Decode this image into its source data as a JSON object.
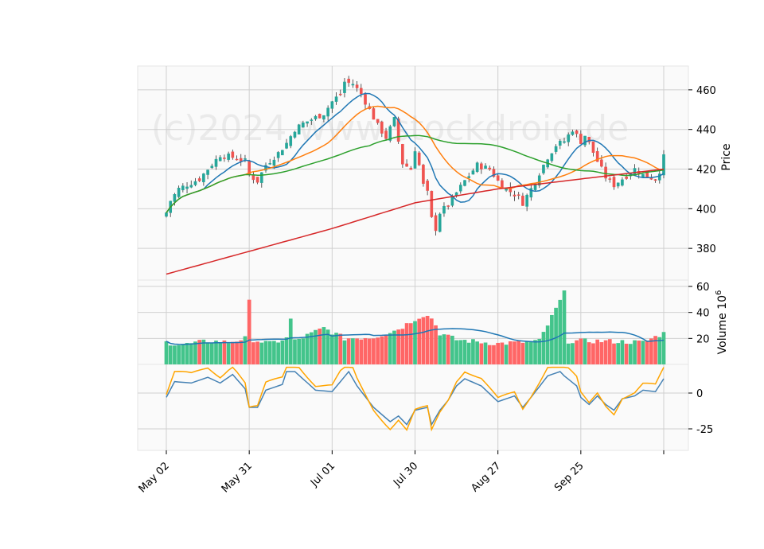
{
  "watermark": "(c)2024 www.stockdroid.de",
  "chart_data": {
    "type": "candlestick",
    "grid": true,
    "panels": {
      "price": {
        "ylabel": "Price",
        "yticks": [
          380,
          400,
          420,
          440,
          460
        ],
        "ylim": [
          364,
          472
        ]
      },
      "volume": {
        "ylabel": "Volume  10^6",
        "yticks": [
          20,
          40,
          60
        ],
        "ylim": [
          0,
          60
        ]
      },
      "indicator": {
        "ylabel": "",
        "yticks": [
          -25,
          0
        ],
        "ylim": [
          -40,
          20
        ]
      }
    },
    "x_tick_labels": [
      {
        "i": 0,
        "label": "May 02"
      },
      {
        "i": 20,
        "label": "May 31"
      },
      {
        "i": 40,
        "label": "Jul 01"
      },
      {
        "i": 60,
        "label": "Jul 30"
      },
      {
        "i": 80,
        "label": "Aug 27"
      },
      {
        "i": 100,
        "label": "Sep 25"
      },
      {
        "i": 120,
        "label": ""
      }
    ],
    "price_keypoints": [
      [
        0,
        398
      ],
      [
        1,
        404
      ],
      [
        3,
        410
      ],
      [
        5,
        412
      ],
      [
        8,
        415
      ],
      [
        10,
        420
      ],
      [
        13,
        427
      ],
      [
        16,
        426
      ],
      [
        19,
        424
      ],
      [
        20,
        417
      ],
      [
        22,
        414
      ],
      [
        24,
        422
      ],
      [
        27,
        428
      ],
      [
        29,
        433
      ],
      [
        31,
        440
      ],
      [
        33,
        443
      ],
      [
        36,
        446
      ],
      [
        38,
        448
      ],
      [
        40,
        454
      ],
      [
        42,
        458
      ],
      [
        43,
        464
      ],
      [
        45,
        463
      ],
      [
        47,
        458
      ],
      [
        49,
        450
      ],
      [
        51,
        442
      ],
      [
        53,
        436
      ],
      [
        55,
        445
      ],
      [
        57,
        423
      ],
      [
        59,
        420
      ],
      [
        60,
        430
      ],
      [
        61,
        422
      ],
      [
        62,
        412
      ],
      [
        63,
        408
      ],
      [
        64,
        395
      ],
      [
        65,
        390
      ],
      [
        66,
        398
      ],
      [
        68,
        402
      ],
      [
        70,
        408
      ],
      [
        72,
        414
      ],
      [
        75,
        422
      ],
      [
        78,
        420
      ],
      [
        80,
        414
      ],
      [
        82,
        410
      ],
      [
        85,
        406
      ],
      [
        86,
        403
      ],
      [
        88,
        410
      ],
      [
        90,
        418
      ],
      [
        92,
        426
      ],
      [
        94,
        432
      ],
      [
        96,
        434
      ],
      [
        98,
        440
      ],
      [
        100,
        434
      ],
      [
        101,
        437
      ],
      [
        102,
        433
      ],
      [
        104,
        424
      ],
      [
        106,
        416
      ],
      [
        108,
        412
      ],
      [
        110,
        415
      ],
      [
        113,
        420
      ],
      [
        115,
        417
      ],
      [
        118,
        415
      ],
      [
        119,
        419
      ],
      [
        120,
        426
      ]
    ],
    "volume_keypoints": [
      [
        0,
        17
      ],
      [
        4,
        15
      ],
      [
        10,
        18
      ],
      [
        15,
        17
      ],
      [
        19,
        20
      ],
      [
        20,
        48
      ],
      [
        21,
        19
      ],
      [
        25,
        16
      ],
      [
        29,
        20
      ],
      [
        30,
        35
      ],
      [
        31,
        18
      ],
      [
        38,
        28
      ],
      [
        43,
        20
      ],
      [
        50,
        21
      ],
      [
        55,
        26
      ],
      [
        57,
        29
      ],
      [
        60,
        35
      ],
      [
        62,
        38
      ],
      [
        64,
        36
      ],
      [
        66,
        24
      ],
      [
        70,
        19
      ],
      [
        80,
        16
      ],
      [
        90,
        18
      ],
      [
        96,
        55
      ],
      [
        97,
        18
      ],
      [
        105,
        18
      ],
      [
        115,
        17
      ],
      [
        120,
        24
      ]
    ],
    "indicator_keypoints": [
      [
        0,
        -3
      ],
      [
        2,
        8
      ],
      [
        6,
        7
      ],
      [
        10,
        11
      ],
      [
        13,
        7
      ],
      [
        16,
        13
      ],
      [
        19,
        3
      ],
      [
        20,
        -10
      ],
      [
        22,
        -10
      ],
      [
        24,
        2
      ],
      [
        28,
        6
      ],
      [
        29,
        15
      ],
      [
        31,
        15
      ],
      [
        36,
        2
      ],
      [
        40,
        1
      ],
      [
        44,
        15
      ],
      [
        46,
        5
      ],
      [
        50,
        -10
      ],
      [
        54,
        -20
      ],
      [
        56,
        -16
      ],
      [
        58,
        -22
      ],
      [
        60,
        -12
      ],
      [
        63,
        -10
      ],
      [
        64,
        -22
      ],
      [
        66,
        -12
      ],
      [
        68,
        -5
      ],
      [
        70,
        5
      ],
      [
        72,
        10
      ],
      [
        76,
        5
      ],
      [
        80,
        -6
      ],
      [
        82,
        -4
      ],
      [
        84,
        -2
      ],
      [
        86,
        -10
      ],
      [
        88,
        -3
      ],
      [
        92,
        12
      ],
      [
        95,
        15
      ],
      [
        96,
        12
      ],
      [
        99,
        5
      ],
      [
        100,
        -3
      ],
      [
        102,
        -8
      ],
      [
        104,
        -2
      ],
      [
        106,
        -8
      ],
      [
        108,
        -12
      ],
      [
        110,
        -4
      ],
      [
        113,
        -2
      ],
      [
        115,
        2
      ],
      [
        118,
        1
      ],
      [
        120,
        10
      ]
    ],
    "series": [
      {
        "kind": "candles",
        "up_color": "#26a69a",
        "down_color": "#ef5350"
      },
      {
        "kind": "ma",
        "window": 10,
        "color": "#1f77b4"
      },
      {
        "kind": "ma",
        "window": 20,
        "color": "#ff7f0e"
      },
      {
        "kind": "ma",
        "window": 50,
        "color": "#2ca02c"
      },
      {
        "kind": "trend200",
        "color": "#d62728",
        "values": [
          [
            0,
            367
          ],
          [
            40,
            390
          ],
          [
            60,
            403
          ],
          [
            80,
            410
          ],
          [
            120,
            420
          ]
        ]
      },
      {
        "kind": "volume_ma",
        "color": "#1f77b4"
      },
      {
        "kind": "osc_fast",
        "color": "#4682b4"
      },
      {
        "kind": "osc_slow",
        "color": "#ffa500"
      }
    ],
    "n_days": 121
  }
}
